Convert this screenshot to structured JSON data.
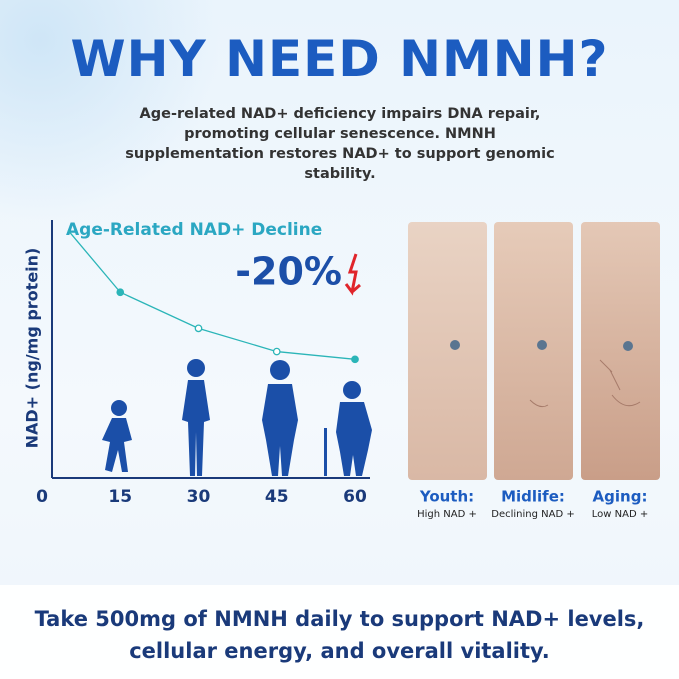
{
  "header": {
    "title": "WHY NEED NMNH?",
    "intro": "Age-related NAD+ deficiency impairs DNA repair, promoting cellular senescence. NMNH supplementation restores NAD+ to support genomic stability."
  },
  "chart_data": {
    "type": "line",
    "title": "Age-Related NAD+ Decline",
    "annotation": "-20%",
    "y_label": "NAD+ (ng/mg protein)",
    "x": [
      5,
      15,
      30,
      45,
      60
    ],
    "values": [
      96,
      72,
      58,
      49,
      46
    ],
    "color": "#2bb5b8",
    "xlim": [
      0,
      60
    ],
    "xticks": [
      0,
      15,
      30,
      45,
      60
    ],
    "ylim": [
      0,
      100
    ]
  },
  "panels": [
    {
      "label": "Youth:",
      "sublabel": "High NAD +"
    },
    {
      "label": "Midlife:",
      "sublabel": "Declining NAD +"
    },
    {
      "label": "Aging:",
      "sublabel": "Low NAD +"
    }
  ],
  "footer": {
    "text": "Take 500mg of NMNH daily to support NAD+ levels, cellular energy, and overall vitality."
  }
}
